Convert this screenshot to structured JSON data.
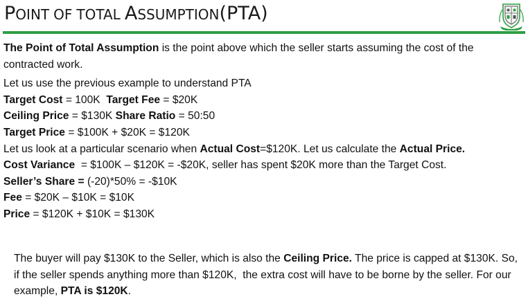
{
  "header": {
    "title": {
      "p1_cap": "P",
      "p1_rest": "OINT",
      "p2": "OF",
      "p3": "TOTAL",
      "p4_cap": "A",
      "p4_rest": "SSUMPTION",
      "p5": "(PTA)"
    },
    "logo_icon": "crest-emblem-icon",
    "accent_color": "#2f9e44"
  },
  "intro": {
    "term": "The Point of Total Assumption",
    "text": " is the point above which the seller starts assuming the cost of the contracted work."
  },
  "lines": {
    "lead": "Let us use the previous example to understand PTA",
    "target_cost_label": "Target Cost",
    "target_cost_value": " = 100K  ",
    "target_fee_label": "Target Fee",
    "target_fee_value": " = $20K",
    "ceiling_price_label": "Ceiling Price",
    "ceiling_price_value": " = $130K ",
    "share_ratio_label": "Share Ratio",
    "share_ratio_value": " = 50:50",
    "target_price_label": "Target Price",
    "target_price_value": " = $100K + $20K = $120K",
    "scenario_a": "Let us look at a particular scenario when ",
    "scenario_actual_cost": "Actual Cost",
    "scenario_b": "=$120K. Let us calculate the ",
    "scenario_actual_price": "Actual Price.",
    "cost_variance_label": "Cost Variance",
    "cost_variance_value": "  = $100K – $120K = -$20K, seller has spent $20K more than the Target Cost.",
    "sellers_share_label": "Seller’s Share = ",
    "sellers_share_value": "(-20)*50% = -$10K",
    "fee_label": "Fee",
    "fee_value": " = $20K – $10K = $10K",
    "price_label": "Price",
    "price_value": " = $120K + $10K = $130K"
  },
  "closing": {
    "a": "The buyer will pay $130K to the Seller, which is also the ",
    "ceiling": "Ceiling Price.",
    "b": " The price is capped at $130K. So, if the seller spends anything more than $120K,  the extra cost will have to be borne by the seller. For our example, ",
    "pta": "PTA is $120K",
    "c": "."
  }
}
